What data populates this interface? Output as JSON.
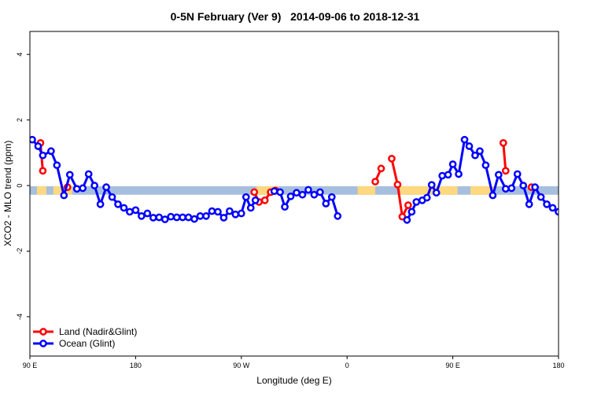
{
  "chart_data": {
    "type": "line",
    "title": "0-5N February (Ver 9)   2014-09-06 to 2018-12-31",
    "xlabel": "Longitude (deg E)",
    "ylabel": "XCO2 - MLO trend (ppm)",
    "xlim": [
      90,
      540
    ],
    "ylim": [
      -5.2,
      4.7
    ],
    "x_ticks": [
      {
        "value": 90,
        "label": "90 E"
      },
      {
        "value": 180,
        "label": "180"
      },
      {
        "value": 270,
        "label": "90 W"
      },
      {
        "value": 360,
        "label": "0"
      },
      {
        "value": 450,
        "label": "90 E"
      },
      {
        "value": 540,
        "label": "180"
      }
    ],
    "y_ticks": [
      {
        "value": -4,
        "label": "-4"
      },
      {
        "value": -2,
        "label": "-2"
      },
      {
        "value": 0,
        "label": "0"
      },
      {
        "value": 2,
        "label": "2"
      },
      {
        "value": 4,
        "label": "4"
      }
    ],
    "grid": false,
    "legend_position": "bottom-left",
    "band": {
      "y_center": -0.15,
      "color": "#a7bfde"
    },
    "land_mask_segments": [
      [
        96,
        104
      ],
      [
        110,
        126
      ],
      [
        283,
        301
      ],
      [
        369,
        384
      ],
      [
        405,
        454
      ],
      [
        465,
        486
      ]
    ],
    "land_mask_color": "#ffd87f",
    "series": [
      {
        "name": "Land (Nadir&Glint)",
        "color": "#ff0000",
        "segments": [
          [
            [
              99,
              1.3
            ],
            [
              101,
              0.45
            ]
          ],
          [
            [
              122,
              -0.05
            ]
          ],
          [
            [
              281,
              -0.2
            ],
            [
              285,
              -0.5
            ],
            [
              290,
              -0.45
            ],
            [
              295,
              -0.2
            ],
            [
              299,
              -0.15
            ]
          ],
          [
            [
              384,
              0.12
            ],
            [
              389,
              0.52
            ]
          ],
          [
            [
              398,
              0.82
            ],
            [
              403,
              0.03
            ],
            [
              407,
              -0.95
            ],
            [
              412,
              -0.6
            ]
          ],
          [
            [
              493,
              1.3
            ],
            [
              495,
              0.45
            ]
          ],
          [
            [
              517,
              -0.05
            ]
          ]
        ]
      },
      {
        "name": "Ocean (Glint)",
        "color": "#0000ff",
        "segments": [
          [
            [
              92,
              1.4
            ],
            [
              97,
              1.2
            ],
            [
              101,
              0.92
            ],
            [
              108,
              1.05
            ],
            [
              113,
              0.62
            ],
            [
              119,
              -0.3
            ],
            [
              124,
              0.33
            ],
            [
              130,
              -0.1
            ],
            [
              135,
              -0.08
            ],
            [
              140,
              0.35
            ],
            [
              145,
              0.0
            ],
            [
              150,
              -0.57
            ],
            [
              155,
              -0.05
            ],
            [
              160,
              -0.35
            ],
            [
              165,
              -0.57
            ],
            [
              170,
              -0.68
            ],
            [
              175,
              -0.8
            ],
            [
              180,
              -0.75
            ],
            [
              185,
              -0.93
            ],
            [
              190,
              -0.85
            ],
            [
              195,
              -0.98
            ],
            [
              200,
              -0.97
            ],
            [
              205,
              -1.03
            ],
            [
              210,
              -0.95
            ],
            [
              215,
              -0.97
            ],
            [
              220,
              -0.97
            ],
            [
              225,
              -0.97
            ],
            [
              230,
              -1.02
            ],
            [
              235,
              -0.93
            ],
            [
              240,
              -0.93
            ],
            [
              245,
              -0.78
            ],
            [
              250,
              -0.8
            ],
            [
              255,
              -0.98
            ],
            [
              260,
              -0.78
            ],
            [
              265,
              -0.88
            ],
            [
              270,
              -0.85
            ],
            [
              274,
              -0.35
            ],
            [
              278,
              -0.68
            ],
            [
              282,
              -0.45
            ]
          ],
          [
            [
              298,
              -0.17
            ],
            [
              303,
              -0.2
            ],
            [
              307,
              -0.65
            ],
            [
              312,
              -0.33
            ],
            [
              317,
              -0.22
            ],
            [
              322,
              -0.28
            ],
            [
              327,
              -0.13
            ],
            [
              332,
              -0.28
            ],
            [
              337,
              -0.2
            ],
            [
              342,
              -0.55
            ],
            [
              347,
              -0.35
            ],
            [
              352,
              -0.93
            ]
          ],
          [
            [
              411,
              -1.05
            ],
            [
              415,
              -0.8
            ],
            [
              419,
              -0.5
            ],
            [
              424,
              -0.45
            ],
            [
              428,
              -0.37
            ],
            [
              432,
              0.02
            ],
            [
              436,
              -0.22
            ],
            [
              441,
              0.3
            ],
            [
              446,
              0.33
            ],
            [
              450,
              0.65
            ],
            [
              455,
              0.35
            ],
            [
              460,
              1.4
            ],
            [
              464,
              1.2
            ],
            [
              469,
              0.92
            ],
            [
              473,
              1.05
            ],
            [
              478,
              0.62
            ],
            [
              484,
              -0.3
            ],
            [
              489,
              0.33
            ],
            [
              495,
              -0.1
            ],
            [
              500,
              -0.08
            ],
            [
              505,
              0.35
            ],
            [
              510,
              0.0
            ],
            [
              515,
              -0.57
            ],
            [
              520,
              -0.05
            ],
            [
              525,
              -0.35
            ],
            [
              530,
              -0.57
            ],
            [
              535,
              -0.68
            ],
            [
              540,
              -0.8
            ],
            [
              545,
              -0.75
            ]
          ]
        ]
      }
    ]
  }
}
